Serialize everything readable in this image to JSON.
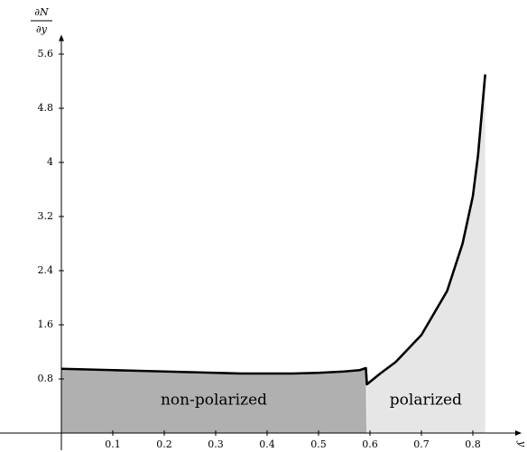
{
  "chart_data": {
    "type": "line",
    "y_label": {
      "numerator": "∂N",
      "denominator": "∂y"
    },
    "x_label": "y",
    "x": [
      0,
      0.05,
      0.1,
      0.15,
      0.2,
      0.25,
      0.3,
      0.35,
      0.4,
      0.45,
      0.5,
      0.55,
      0.58,
      0.592,
      0.594,
      0.62,
      0.65,
      0.7,
      0.75,
      0.78,
      0.8,
      0.81,
      0.824
    ],
    "series": [
      {
        "color": "#000000",
        "values": [
          0.95,
          0.94,
          0.93,
          0.92,
          0.91,
          0.9,
          0.89,
          0.88,
          0.88,
          0.88,
          0.89,
          0.91,
          0.93,
          0.96,
          0.72,
          0.88,
          1.05,
          1.45,
          2.1,
          2.8,
          3.5,
          4.1,
          5.3
        ]
      }
    ],
    "regions": [
      {
        "label": "non-polarized",
        "x": [
          0,
          0.593
        ],
        "color": "#b0b0b0"
      },
      {
        "label": "polarized",
        "x": [
          0.593,
          0.824
        ],
        "color": "#e6e6e6"
      }
    ],
    "xlim": [
      0,
      0.9
    ],
    "ylim": [
      0,
      5.9
    ],
    "xticks": [
      0.1,
      0.2,
      0.3,
      0.4,
      0.5,
      0.6,
      0.7,
      0.8
    ],
    "yticks": [
      0.8,
      1.6,
      2.4,
      3.2,
      4,
      4.8,
      5.6
    ]
  }
}
